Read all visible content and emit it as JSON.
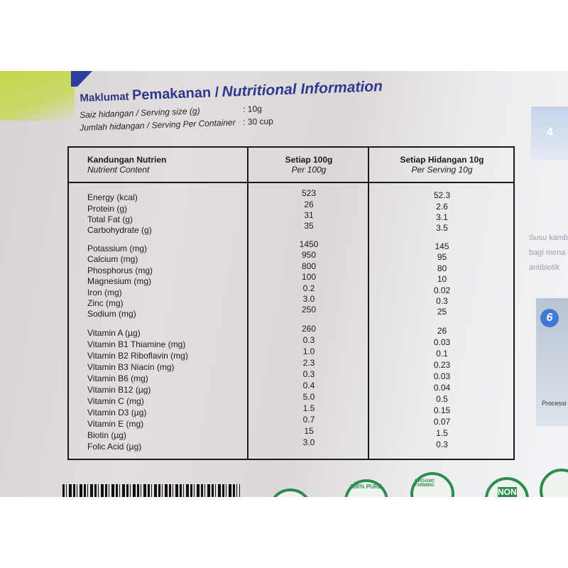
{
  "header": {
    "title_malay_1": "Maklumat",
    "title_malay_2": "Pemakanan /",
    "title_english": "Nutritional Information",
    "serving_size_label": "Saiz hidangan / Serving size (g)",
    "serving_size_value": ": 10g",
    "servings_per_container_label": "Jumlah hidangan / Serving Per Container",
    "servings_per_container_value": ": 30 cup",
    "title_color": "#2c3991"
  },
  "table": {
    "columns": [
      {
        "malay": "Kandungan Nutrien",
        "english": "Nutrient Content"
      },
      {
        "malay": "Setiap 100g",
        "english": "Per 100g"
      },
      {
        "malay": "Setiap Hidangan 10g",
        "english": "Per Serving 10g"
      }
    ],
    "rows": [
      {
        "nutrient": "Energy (kcal)",
        "per_100g": "523",
        "per_serving": "52.3"
      },
      {
        "nutrient": "Protein (g)",
        "per_100g": "26",
        "per_serving": "2.6"
      },
      {
        "nutrient": "Total Fat (g)",
        "per_100g": "31",
        "per_serving": "3.1"
      },
      {
        "nutrient": "Carbohydrate (g)",
        "per_100g": "35",
        "per_serving": "3.5"
      },
      {
        "nutrient": "Potassium (mg)",
        "per_100g": "1450",
        "per_serving": "145"
      },
      {
        "nutrient": "Calcium (mg)",
        "per_100g": "950",
        "per_serving": "95"
      },
      {
        "nutrient": "Phosphorus (mg)",
        "per_100g": "800",
        "per_serving": "80"
      },
      {
        "nutrient": "Magnesium (mg)",
        "per_100g": "100",
        "per_serving": "10"
      },
      {
        "nutrient": "Iron (mg)",
        "per_100g": "0.2",
        "per_serving": "0.02"
      },
      {
        "nutrient": "Zinc (mg)",
        "per_100g": "3.0",
        "per_serving": "0.3"
      },
      {
        "nutrient": "Sodium (mg)",
        "per_100g": "250",
        "per_serving": "25"
      },
      {
        "nutrient": "Vitamin A (µg)",
        "per_100g": "260",
        "per_serving": "26"
      },
      {
        "nutrient": "Vitamin B1 Thiamine (mg)",
        "per_100g": "0.3",
        "per_serving": "0.03"
      },
      {
        "nutrient": "Vitamin B2 Riboflavin (mg)",
        "per_100g": "1.0",
        "per_serving": "0.1"
      },
      {
        "nutrient": "Vitamin B3 Niacin (mg)",
        "per_100g": "2.3",
        "per_serving": "0.23"
      },
      {
        "nutrient": "Vitamin B6 (mg)",
        "per_100g": "0.3",
        "per_serving": "0.03"
      },
      {
        "nutrient": "Vitamin B12 (µg)",
        "per_100g": "0.4",
        "per_serving": "0.04"
      },
      {
        "nutrient": "Vitamin C (mg)",
        "per_100g": "5.0",
        "per_serving": "0.5"
      },
      {
        "nutrient": "Vitamin D3 (µg)",
        "per_100g": "1.5",
        "per_serving": "0.15"
      },
      {
        "nutrient": "Vitamin E (mg)",
        "per_100g": "0.7",
        "per_serving": "0.07"
      },
      {
        "nutrient": "Biotin (µg)",
        "per_100g": "15",
        "per_serving": "1.5"
      },
      {
        "nutrient": "Folic Acid (µg)",
        "per_100g": "3.0",
        "per_serving": "0.3"
      }
    ]
  },
  "side_panel": {
    "step_4": "4",
    "text_lines": [
      "Susu kamb",
      "bagi mena",
      "antibiotik"
    ],
    "step_6": "6",
    "caption": "Processi"
  },
  "seals": [
    "100% PURE",
    "ORGANIC FARMING",
    "NON"
  ],
  "colors": {
    "seal_green": "#2e8b4e",
    "accent_lime": "#c6d64a",
    "step_blue": "#3f7ad8"
  }
}
